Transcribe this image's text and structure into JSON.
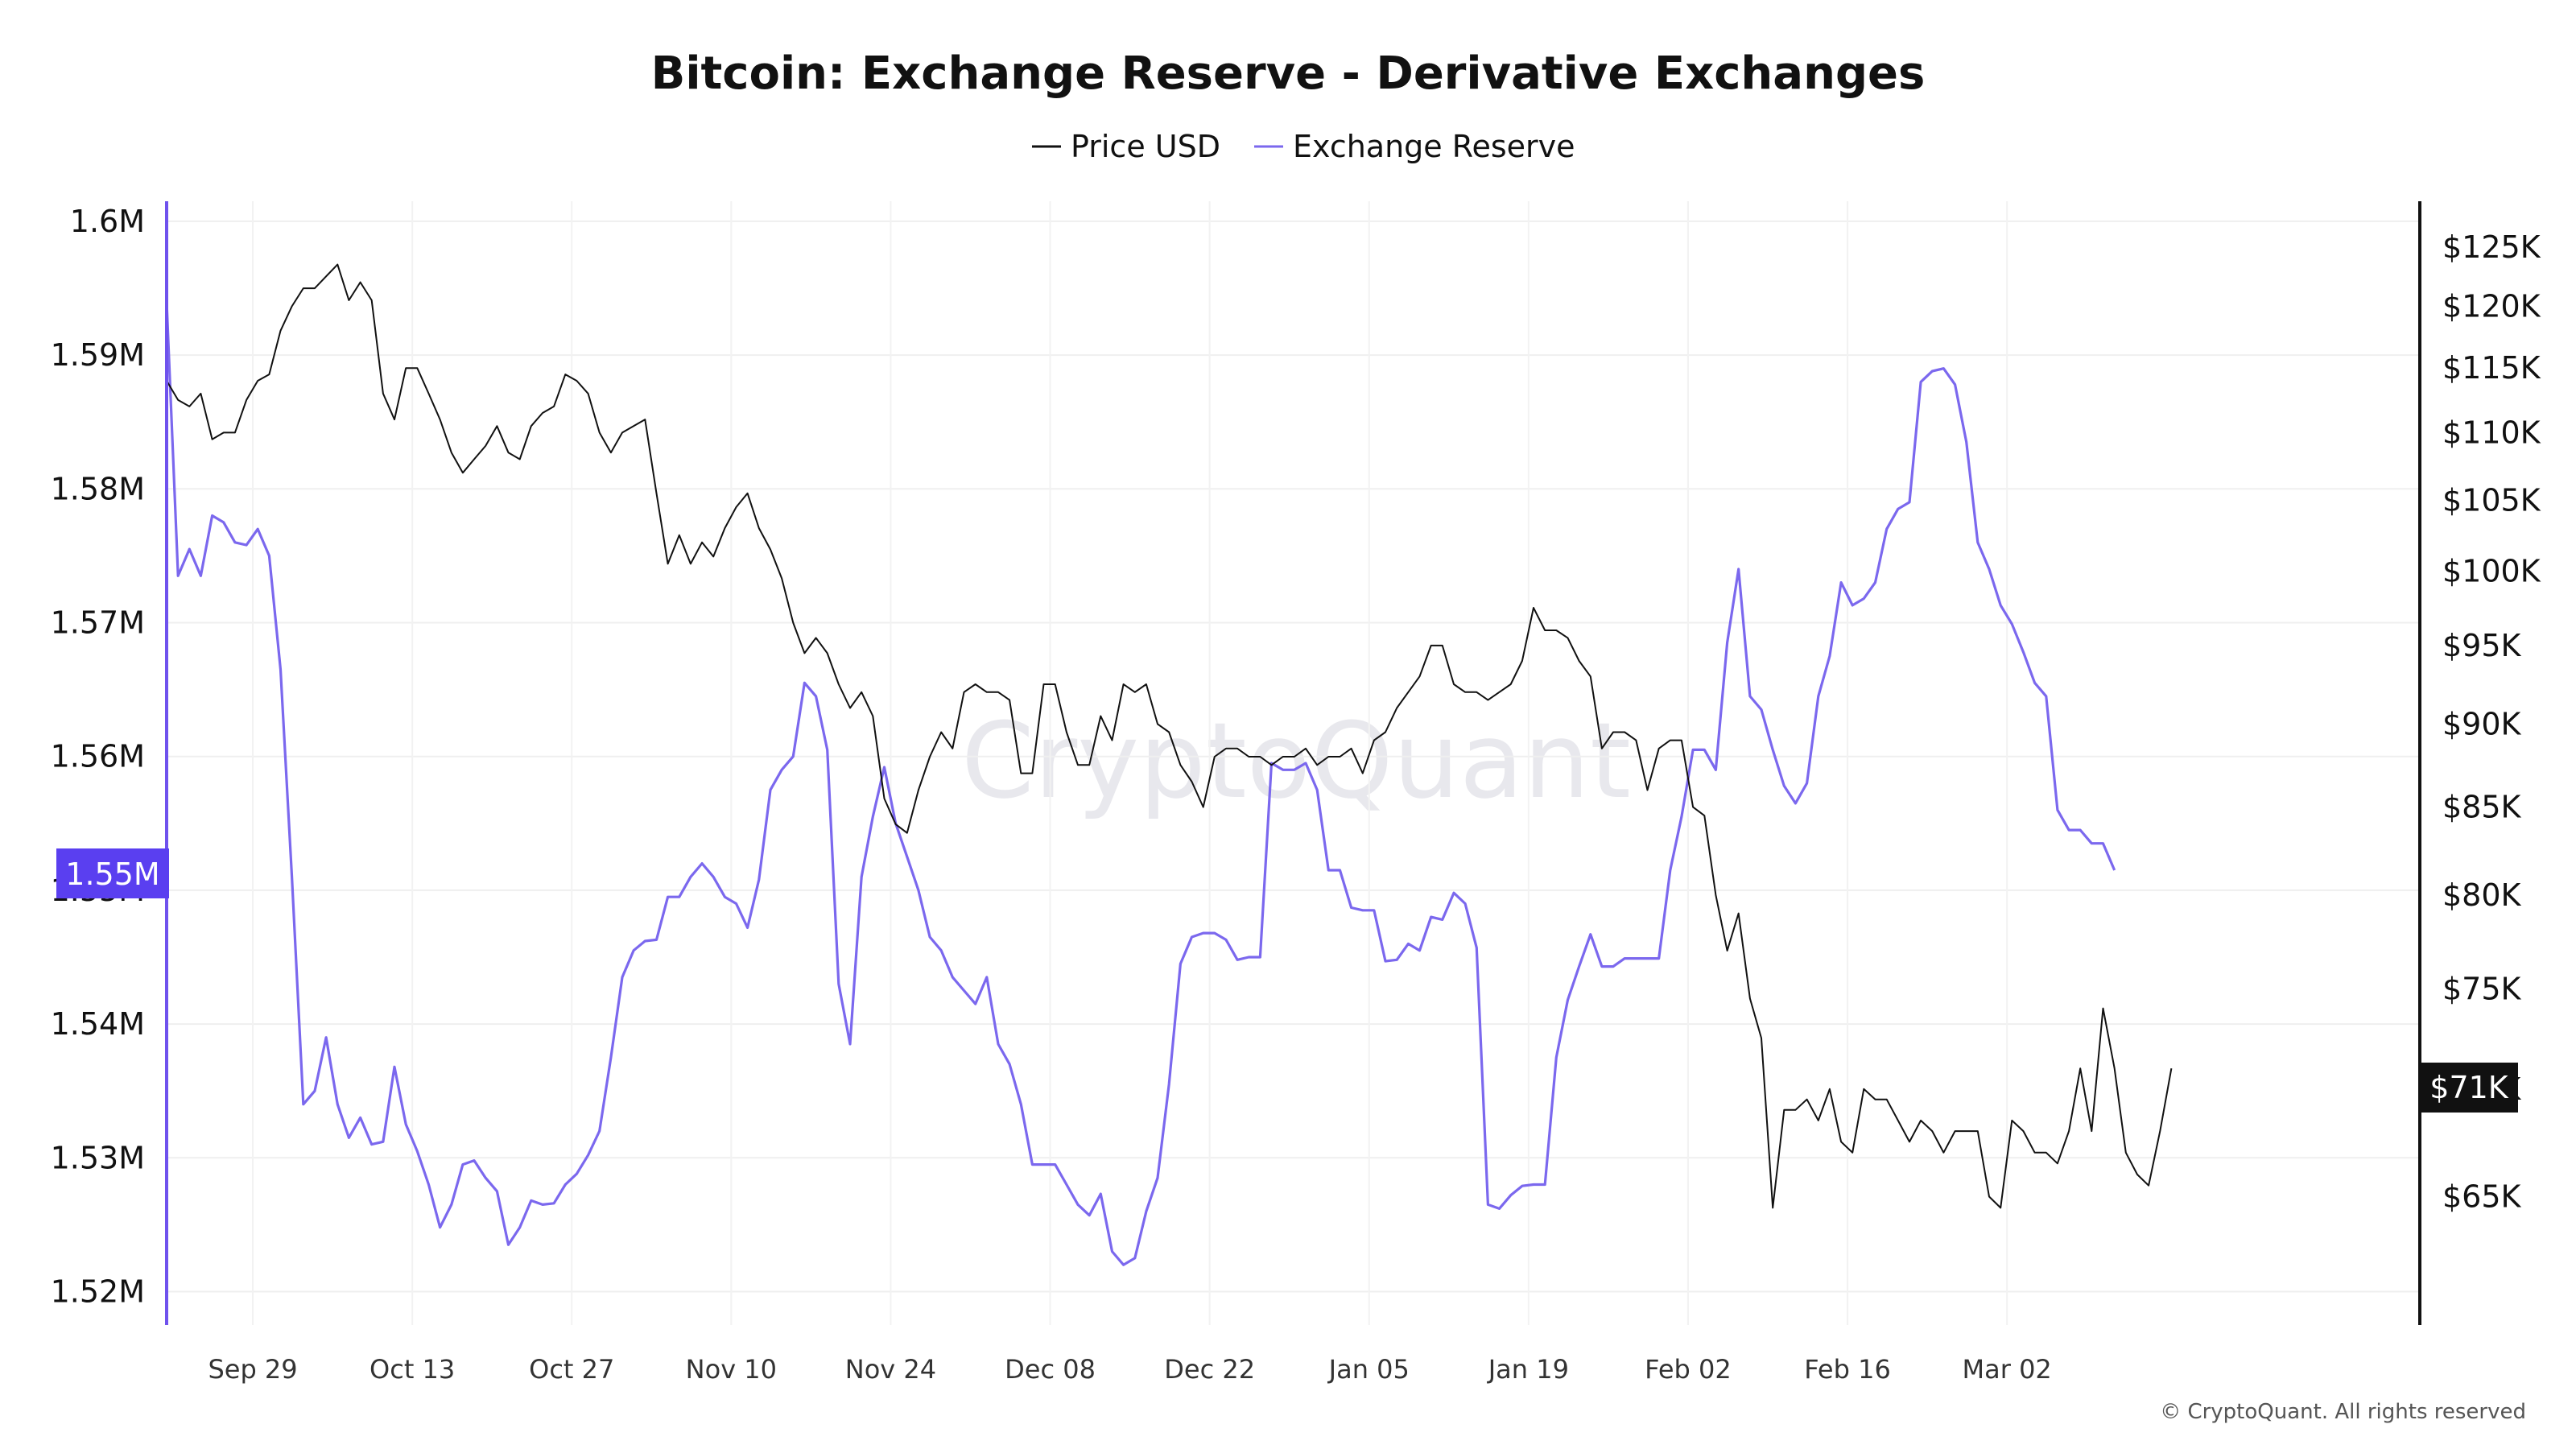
{
  "chart_data": {
    "type": "line",
    "title": "Bitcoin: Exchange Reserve - Derivative Exchanges",
    "legend": [
      {
        "name": "Price USD",
        "color": "#111111"
      },
      {
        "name": "Exchange Reserve",
        "color": "#7b68ee"
      }
    ],
    "legend_position": "top-center",
    "x": {
      "tick_labels": [
        "Sep 29",
        "Oct 13",
        "Oct 27",
        "Nov 10",
        "Nov 24",
        "Dec 08",
        "Dec 22",
        "Jan 05",
        "Jan 19",
        "Feb 02",
        "Feb 16",
        "Mar 02"
      ],
      "tick_day_index": [
        7,
        21,
        35,
        49,
        63,
        77,
        91,
        105,
        119,
        133,
        147,
        161
      ],
      "n_days": 171
    },
    "y_left": {
      "ticks": [
        "1.6M",
        "1.59M",
        "1.58M",
        "1.57M",
        "1.56M",
        "1.55M",
        "1.54M",
        "1.53M",
        "1.52M"
      ],
      "tick_values": [
        1.6,
        1.59,
        1.58,
        1.57,
        1.56,
        1.55,
        1.54,
        1.53,
        1.52
      ],
      "range_millions": [
        1.5175,
        1.6015
      ]
    },
    "y_right": {
      "ticks": [
        "$125K",
        "$120K",
        "$115K",
        "$110K",
        "$105K",
        "$100K",
        "$95K",
        "$90K",
        "$85K",
        "$80K",
        "$75K",
        "$70K",
        "$65K"
      ],
      "tick_values": [
        125,
        120,
        115,
        110,
        105,
        100,
        95,
        90,
        85,
        80,
        75,
        70,
        65
      ],
      "scale": "log",
      "range_thousands": [
        59.5,
        129
      ]
    },
    "grid": true,
    "series": [
      {
        "name": "Exchange Reserve",
        "axis": "left",
        "unit": "M BTC",
        "values": [
          1.594,
          1.5735,
          1.5755,
          1.5735,
          1.578,
          1.5775,
          1.576,
          1.5758,
          1.577,
          1.575,
          1.5665,
          1.551,
          1.534,
          1.535,
          1.539,
          1.534,
          1.5315,
          1.533,
          1.531,
          1.5312,
          1.5368,
          1.5325,
          1.5305,
          1.528,
          1.5248,
          1.5265,
          1.5295,
          1.5298,
          1.5285,
          1.5275,
          1.5235,
          1.5248,
          1.5268,
          1.5265,
          1.5266,
          1.528,
          1.5288,
          1.5302,
          1.532,
          1.5375,
          1.5435,
          1.5455,
          1.5462,
          1.5463,
          1.5495,
          1.5495,
          1.551,
          1.552,
          1.551,
          1.5495,
          1.549,
          1.5472,
          1.5508,
          1.5575,
          1.559,
          1.56,
          1.5655,
          1.5645,
          1.5605,
          1.543,
          1.5385,
          1.551,
          1.5555,
          1.5592,
          1.555,
          1.5525,
          1.55,
          1.5465,
          1.5455,
          1.5435,
          1.5425,
          1.5415,
          1.5435,
          1.5385,
          1.537,
          1.534,
          1.5295,
          1.5295,
          1.5295,
          1.528,
          1.5265,
          1.5257,
          1.5273,
          1.523,
          1.522,
          1.5225,
          1.526,
          1.5285,
          1.5355,
          1.5445,
          1.5465,
          1.5468,
          1.5468,
          1.5463,
          1.5448,
          1.545,
          1.545,
          1.5595,
          1.559,
          1.559,
          1.5595,
          1.5575,
          1.5515,
          1.5515,
          1.5487,
          1.5485,
          1.5485,
          1.5447,
          1.5448,
          1.546,
          1.5455,
          1.548,
          1.5478,
          1.5498,
          1.549,
          1.5457,
          1.5265,
          1.5262,
          1.5272,
          1.5279,
          1.528,
          1.528,
          1.5375,
          1.5418,
          1.5443,
          1.5467,
          1.5443,
          1.5443,
          1.5449,
          1.5449,
          1.5449,
          1.5449,
          1.5515,
          1.5555,
          1.5605,
          1.5605,
          1.559,
          1.5685,
          1.574,
          1.5645,
          1.5635,
          1.5605,
          1.5578,
          1.5565,
          1.558,
          1.5645,
          1.5675,
          1.573,
          1.5713,
          1.5718,
          1.573,
          1.577,
          1.5785,
          1.579,
          1.588,
          1.5888,
          1.589,
          1.5878,
          1.5835,
          1.576,
          1.574,
          1.5713,
          1.5699,
          1.5678,
          1.5655,
          1.5645,
          1.556,
          1.5545,
          1.5545,
          1.5535,
          1.5535,
          1.5515
        ],
        "last_value_label": "1.55M"
      },
      {
        "name": "Price USD",
        "axis": "right",
        "unit": "$K",
        "values": [
          114,
          112.5,
          112.0,
          113,
          109.5,
          110.0,
          110.0,
          112.5,
          114.0,
          114.5,
          118.0,
          120.0,
          121.5,
          121.5,
          122.5,
          123.5,
          120.5,
          122.0,
          120.5,
          113.0,
          111.0,
          115.0,
          115.0,
          113.0,
          111.0,
          108.5,
          107.0,
          108.0,
          109.0,
          110.5,
          108.5,
          108.0,
          110.5,
          111.5,
          112.0,
          114.5,
          114.0,
          113.0,
          110.0,
          108.5,
          110.0,
          110.5,
          111.0,
          105.5,
          100.5,
          102.5,
          100.5,
          102.0,
          101.0,
          103.0,
          104.5,
          105.5,
          103.0,
          101.5,
          99.5,
          96.5,
          94.5,
          95.5,
          94.5,
          92.5,
          91.0,
          92.0,
          90.5,
          85.5,
          84.0,
          83.5,
          86.0,
          88.0,
          89.5,
          88.5,
          92.0,
          92.5,
          92.0,
          92.0,
          91.5,
          87.0,
          87.0,
          92.5,
          92.5,
          89.5,
          87.5,
          87.5,
          90.5,
          89.0,
          92.5,
          92.0,
          92.5,
          90.0,
          89.5,
          87.5,
          86.5,
          85.0,
          88.0,
          88.5,
          88.5,
          88.0,
          88.0,
          87.5,
          88.0,
          88.0,
          88.5,
          87.5,
          88.0,
          88.0,
          88.5,
          87.0,
          89.0,
          89.5,
          91.0,
          92.0,
          93.0,
          95.0,
          95.0,
          92.5,
          92.0,
          92.0,
          91.5,
          92.0,
          92.5,
          94.0,
          97.5,
          96.0,
          96.0,
          95.5,
          94.0,
          93.0,
          88.5,
          89.5,
          89.5,
          89.0,
          86.0,
          88.5,
          89.0,
          89.0,
          85.0,
          84.5,
          80.0,
          77.0,
          79.0,
          74.5,
          72.5,
          64.5,
          69.0,
          69.0,
          69.5,
          68.5,
          70.0,
          67.5,
          67.0,
          70.0,
          69.5,
          69.5,
          68.5,
          67.5,
          68.5,
          68.0,
          67.0,
          68.0,
          68.0,
          68.0,
          65.0,
          64.5,
          68.5,
          68.0,
          67.0,
          67.0,
          66.5,
          68.0,
          71.0,
          68.0,
          74.0,
          71.0,
          67.0,
          66.0,
          65.5,
          68.0,
          71.0
        ],
        "last_value_label": "$71K"
      }
    ],
    "watermark": "CryptoQuant",
    "copyright": "© CryptoQuant. All rights reserved"
  }
}
